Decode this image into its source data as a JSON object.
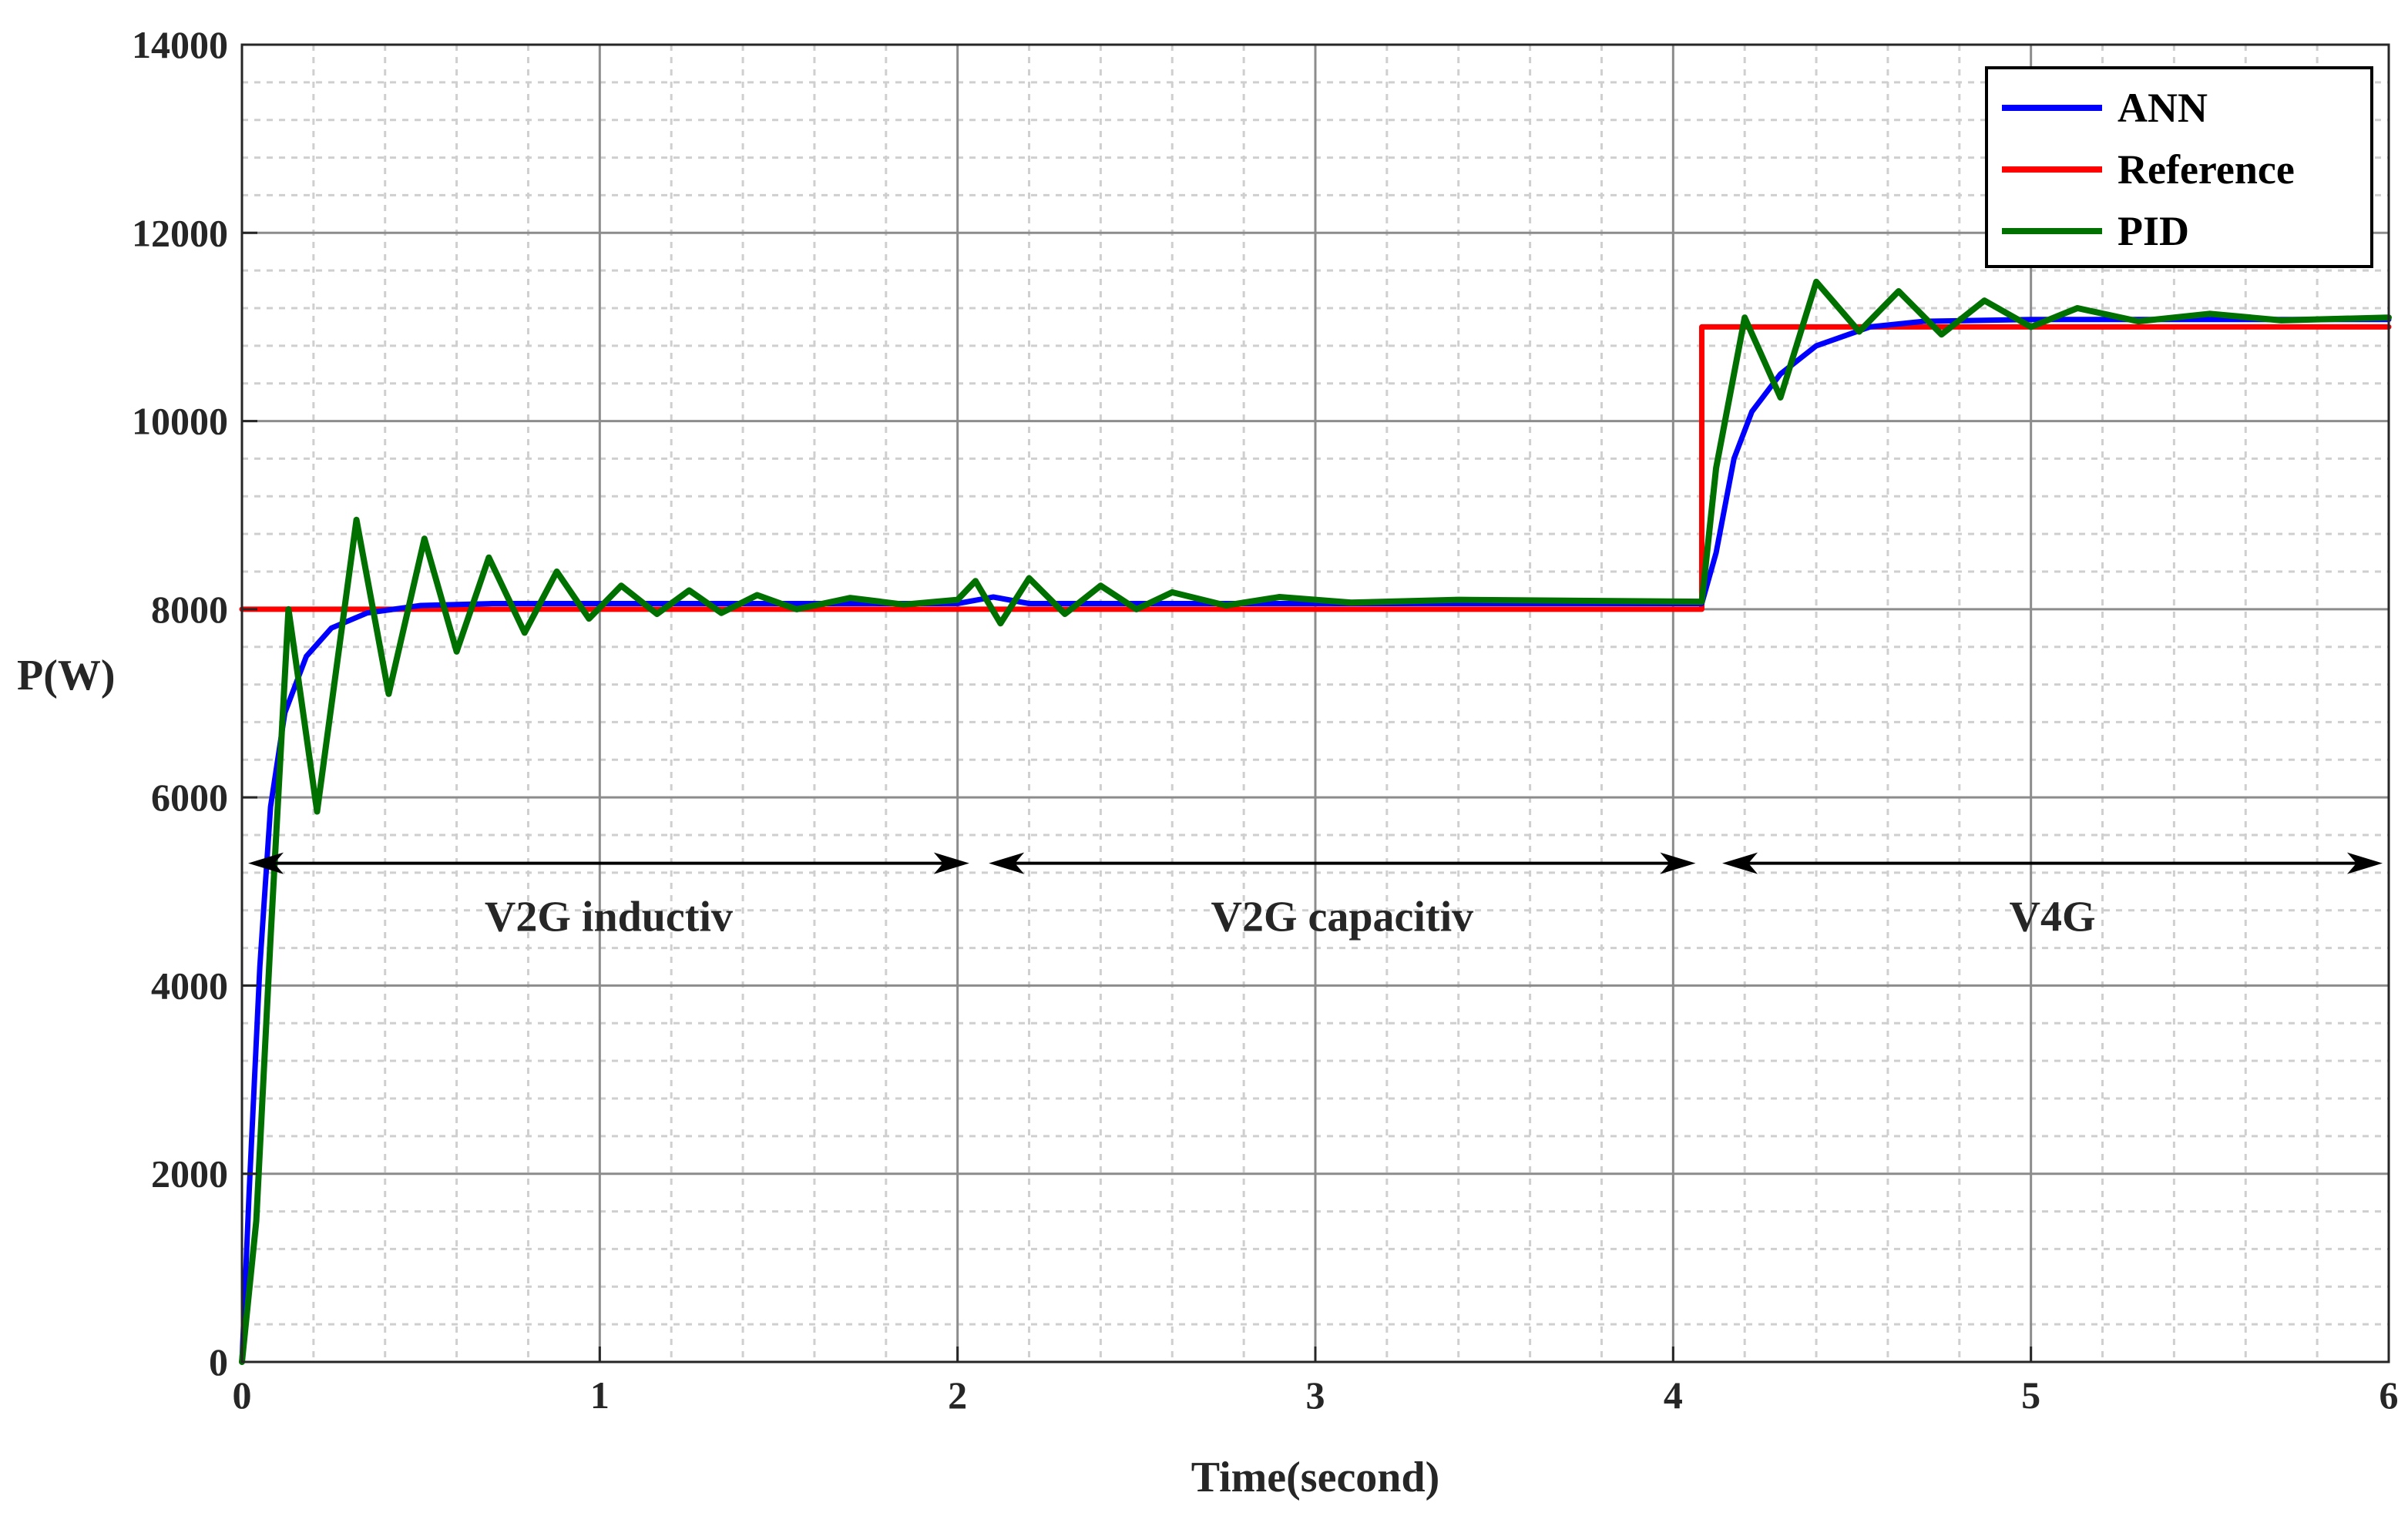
{
  "chart_data": {
    "type": "line",
    "title": "",
    "xlabel": "Time(second)",
    "ylabel": "P(W)",
    "xlim": [
      0,
      6
    ],
    "ylim": [
      0,
      14000
    ],
    "xticks": [
      0,
      1,
      2,
      3,
      4,
      5,
      6
    ],
    "yticks": [
      0,
      2000,
      4000,
      6000,
      8000,
      10000,
      12000,
      14000
    ],
    "grid": true,
    "minor_grid": true,
    "legend_position": "top-right",
    "series": [
      {
        "name": "ANN",
        "color": "#0000ff",
        "points": [
          [
            0,
            0
          ],
          [
            0.02,
            1800
          ],
          [
            0.05,
            4200
          ],
          [
            0.08,
            5900
          ],
          [
            0.12,
            6900
          ],
          [
            0.18,
            7500
          ],
          [
            0.25,
            7800
          ],
          [
            0.35,
            7960
          ],
          [
            0.5,
            8040
          ],
          [
            0.7,
            8060
          ],
          [
            1.0,
            8060
          ],
          [
            1.5,
            8060
          ],
          [
            2.0,
            8060
          ],
          [
            2.1,
            8130
          ],
          [
            2.2,
            8060
          ],
          [
            3.0,
            8060
          ],
          [
            4.08,
            8060
          ],
          [
            4.12,
            8600
          ],
          [
            4.17,
            9600
          ],
          [
            4.22,
            10100
          ],
          [
            4.3,
            10500
          ],
          [
            4.4,
            10800
          ],
          [
            4.55,
            11000
          ],
          [
            4.7,
            11060
          ],
          [
            5.0,
            11080
          ],
          [
            6.0,
            11080
          ]
        ]
      },
      {
        "name": "Reference",
        "color": "#ff0000",
        "points": [
          [
            0,
            8000
          ],
          [
            4.08,
            8000
          ],
          [
            4.08,
            11000
          ],
          [
            6.0,
            11000
          ]
        ]
      },
      {
        "name": "PID",
        "color": "#007000",
        "points": [
          [
            0,
            0
          ],
          [
            0.04,
            1500
          ],
          [
            0.08,
            4500
          ],
          [
            0.13,
            8000
          ],
          [
            0.21,
            5850
          ],
          [
            0.32,
            8950
          ],
          [
            0.41,
            7100
          ],
          [
            0.51,
            8750
          ],
          [
            0.6,
            7550
          ],
          [
            0.69,
            8550
          ],
          [
            0.79,
            7750
          ],
          [
            0.88,
            8400
          ],
          [
            0.97,
            7900
          ],
          [
            1.06,
            8250
          ],
          [
            1.16,
            7950
          ],
          [
            1.25,
            8200
          ],
          [
            1.34,
            7960
          ],
          [
            1.44,
            8150
          ],
          [
            1.55,
            8000
          ],
          [
            1.7,
            8120
          ],
          [
            1.85,
            8050
          ],
          [
            2.0,
            8100
          ],
          [
            2.05,
            8300
          ],
          [
            2.12,
            7850
          ],
          [
            2.2,
            8330
          ],
          [
            2.3,
            7950
          ],
          [
            2.4,
            8250
          ],
          [
            2.5,
            8000
          ],
          [
            2.6,
            8180
          ],
          [
            2.75,
            8040
          ],
          [
            2.9,
            8130
          ],
          [
            3.1,
            8070
          ],
          [
            3.4,
            8100
          ],
          [
            4.08,
            8080
          ],
          [
            4.12,
            9500
          ],
          [
            4.2,
            11100
          ],
          [
            4.3,
            10250
          ],
          [
            4.4,
            11480
          ],
          [
            4.52,
            10950
          ],
          [
            4.63,
            11380
          ],
          [
            4.75,
            10920
          ],
          [
            4.87,
            11280
          ],
          [
            5.0,
            11000
          ],
          [
            5.13,
            11200
          ],
          [
            5.3,
            11060
          ],
          [
            5.5,
            11140
          ],
          [
            5.7,
            11070
          ],
          [
            6.0,
            11100
          ]
        ]
      }
    ],
    "annotations": [
      {
        "text": "V2G inductiv",
        "from": 0.0,
        "to": 2.05,
        "y": 5300
      },
      {
        "text": "V2G capacitiv",
        "from": 2.07,
        "to": 4.08,
        "y": 5300
      },
      {
        "text": "V4G",
        "from": 4.12,
        "to": 6.0,
        "y": 5300
      }
    ]
  }
}
